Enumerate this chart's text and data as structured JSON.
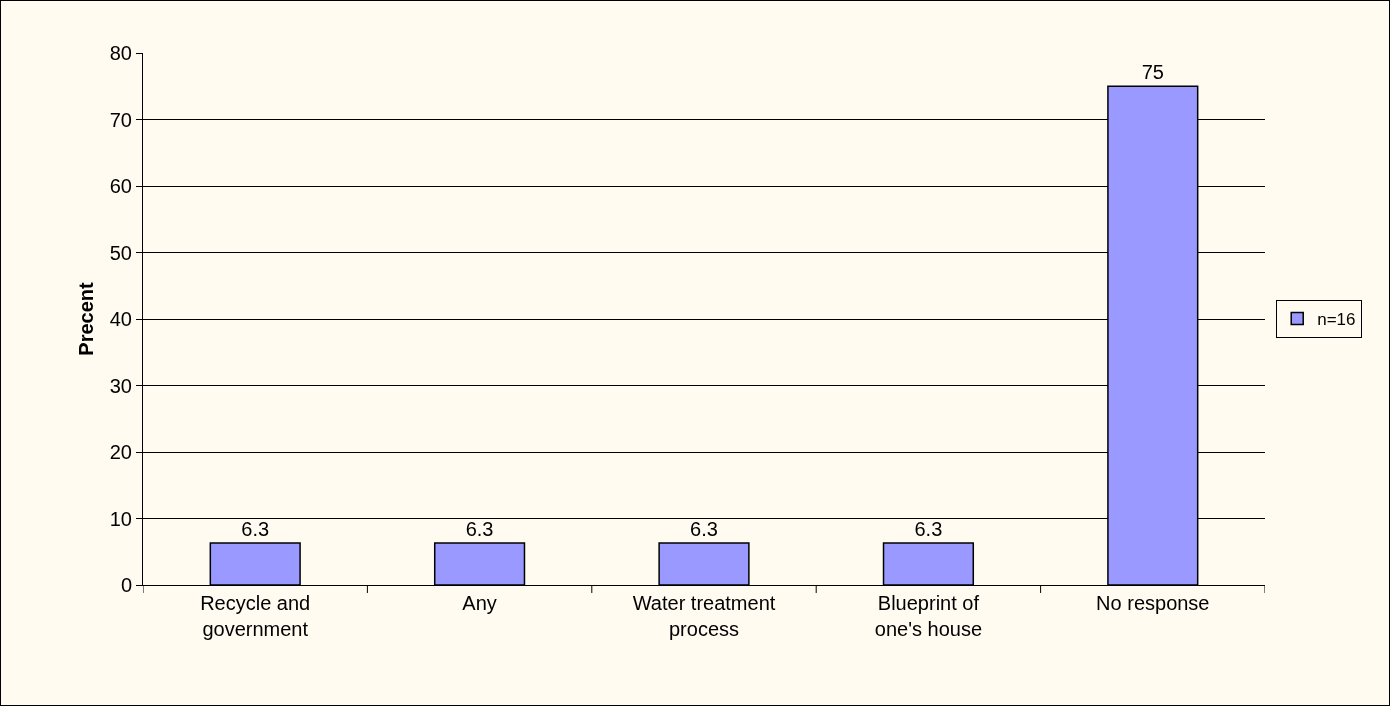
{
  "chart_data": {
    "type": "bar",
    "ylabel": "Precent",
    "categories": [
      "Recycle and government",
      "Any",
      "Water treatment process",
      "Blueprint of one's house",
      "No response"
    ],
    "series": [
      {
        "name": "n=16",
        "color": "#9999ff",
        "values": [
          6.3,
          6.3,
          6.3,
          6.3,
          75
        ]
      }
    ],
    "ylim": [
      0,
      80
    ],
    "yticks": [
      0,
      10,
      20,
      30,
      40,
      50,
      60,
      70,
      80
    ],
    "grid": "y",
    "legend": "right",
    "data_labels": true
  }
}
